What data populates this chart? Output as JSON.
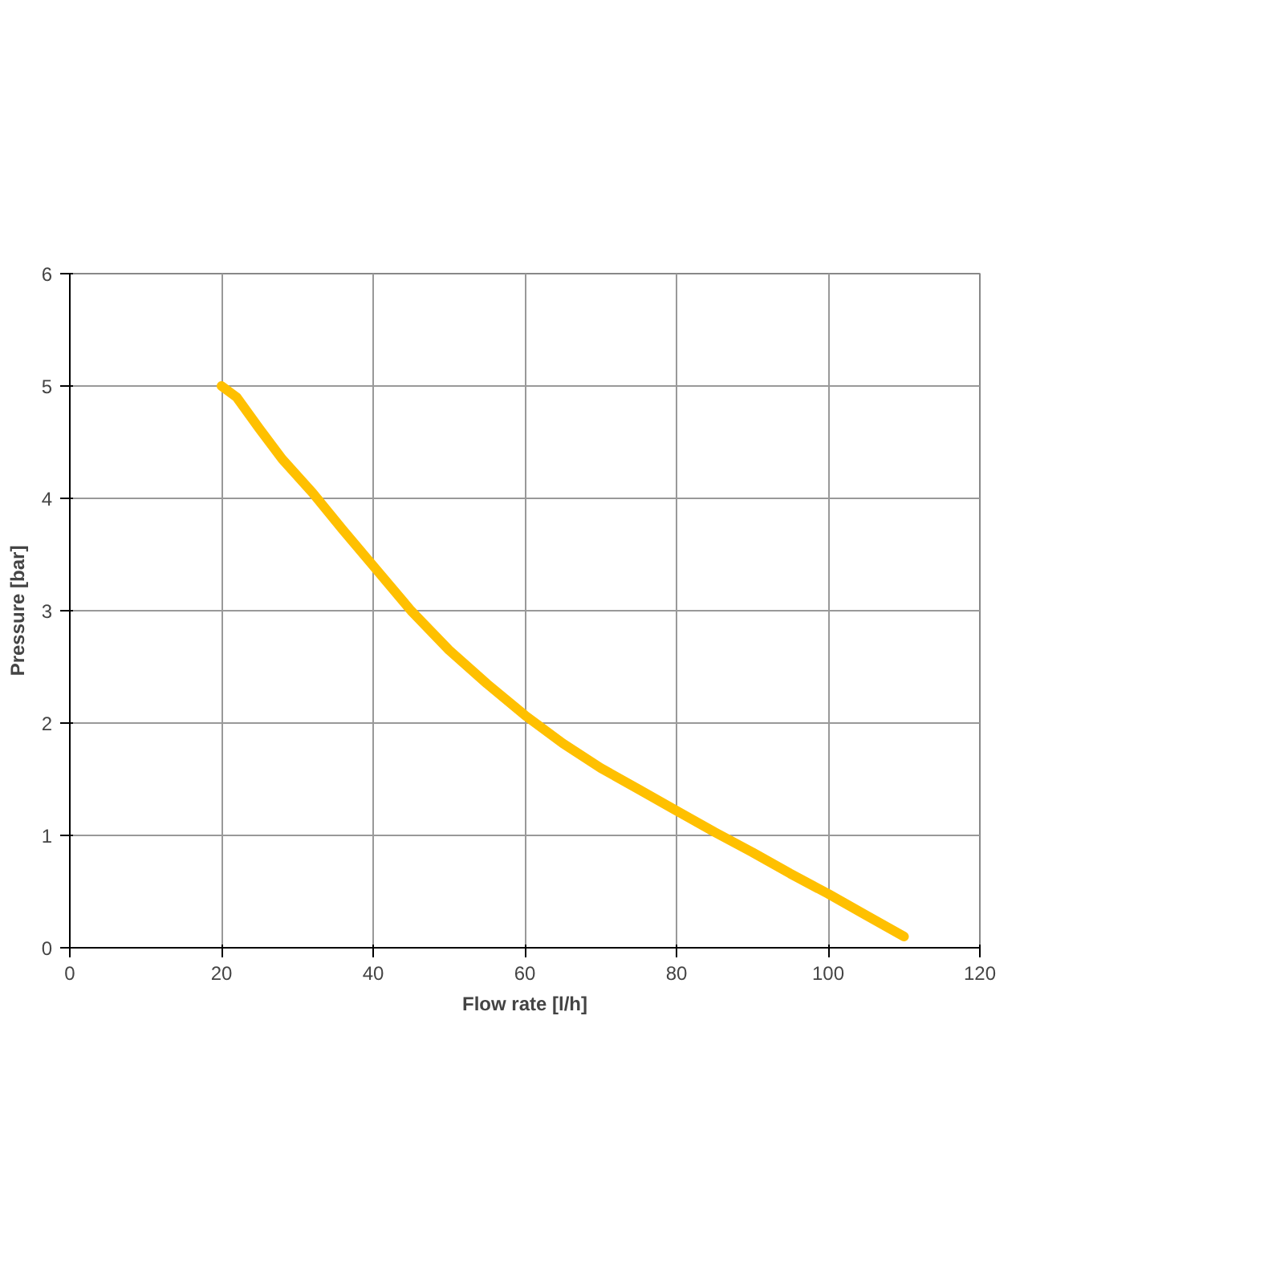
{
  "chart_data": {
    "type": "line",
    "xlabel": "Flow rate [l/h]",
    "ylabel": "Pressure [bar]",
    "xlim": [
      0,
      120
    ],
    "xticks": [
      0,
      20,
      40,
      60,
      80,
      100,
      120
    ],
    "ylim": [
      0,
      6
    ],
    "yticks": [
      0,
      1,
      2,
      3,
      4,
      5,
      6
    ],
    "grid": true,
    "marker": "none",
    "line_style": "solid",
    "series": [
      {
        "color": "#ffc000",
        "x": [
          20,
          22,
          25,
          28,
          32,
          36,
          40,
          45,
          50,
          55,
          60,
          65,
          70,
          75,
          80,
          85,
          90,
          95,
          100,
          105,
          110
        ],
        "values": [
          5.0,
          4.9,
          4.62,
          4.35,
          4.05,
          3.72,
          3.4,
          3.0,
          2.65,
          2.35,
          2.07,
          1.82,
          1.6,
          1.41,
          1.22,
          1.03,
          0.85,
          0.66,
          0.48,
          0.29,
          0.1
        ]
      }
    ]
  }
}
